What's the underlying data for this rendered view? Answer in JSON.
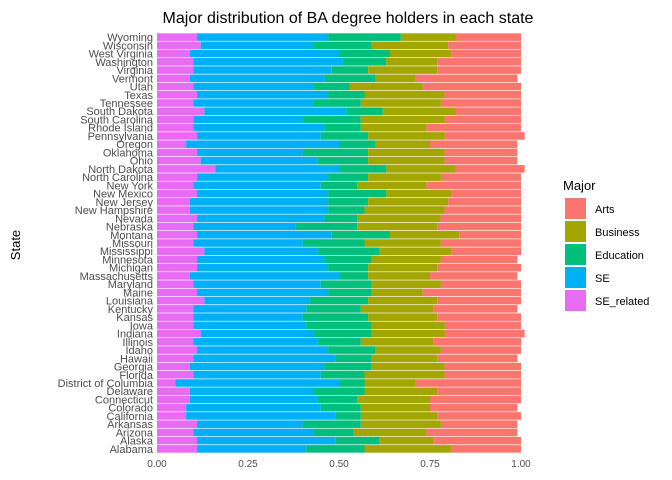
{
  "chart_data": {
    "type": "bar",
    "orientation": "horizontal",
    "stacked": true,
    "title": "Major distribution of BA degree holders in each state",
    "ylabel": "State",
    "xlabel": "",
    "xlim": [
      0,
      1
    ],
    "xticks": [
      "0.00",
      "0.25",
      "0.50",
      "0.75",
      "1.00"
    ],
    "grid": false,
    "legend": {
      "title": "Major",
      "position": "right"
    },
    "categories": [
      "Alabama",
      "Alaska",
      "Arizona",
      "Arkansas",
      "California",
      "Colorado",
      "Connecticut",
      "Delaware",
      "District of Columbia",
      "Florida",
      "Georgia",
      "Hawaii",
      "Idaho",
      "Illinois",
      "Indiana",
      "Iowa",
      "Kansas",
      "Kentucky",
      "Louisiana",
      "Maine",
      "Maryland",
      "Massachusetts",
      "Michigan",
      "Minnesota",
      "Mississippi",
      "Missouri",
      "Montana",
      "Nebraska",
      "Nevada",
      "New Hampshire",
      "New Jersey",
      "New Mexico",
      "New York",
      "North Carolina",
      "North Dakota",
      "Ohio",
      "Oklahoma",
      "Oregon",
      "Pennsylvania",
      "Rhode Island",
      "South Carolina",
      "South Dakota",
      "Tennessee",
      "Texas",
      "Utah",
      "Vermont",
      "Virginia",
      "Washington",
      "West Virginia",
      "Wisconsin",
      "Wyoming"
    ],
    "series": [
      {
        "name": "SE_related",
        "color": "#E76BF3",
        "values": [
          0.11,
          0.11,
          0.1,
          0.11,
          0.08,
          0.08,
          0.09,
          0.09,
          0.05,
          0.1,
          0.09,
          0.1,
          0.11,
          0.1,
          0.12,
          0.1,
          0.1,
          0.1,
          0.13,
          0.11,
          0.1,
          0.09,
          0.11,
          0.11,
          0.13,
          0.1,
          0.11,
          0.1,
          0.11,
          0.09,
          0.09,
          0.11,
          0.1,
          0.11,
          0.16,
          0.12,
          0.11,
          0.08,
          0.11,
          0.1,
          0.1,
          0.13,
          0.1,
          0.11,
          0.1,
          0.09,
          0.1,
          0.1,
          0.09,
          0.12,
          0.11
        ]
      },
      {
        "name": "SE",
        "color": "#00B0F6",
        "values": [
          0.3,
          0.38,
          0.33,
          0.29,
          0.41,
          0.37,
          0.35,
          0.34,
          0.45,
          0.35,
          0.37,
          0.39,
          0.36,
          0.34,
          0.31,
          0.31,
          0.3,
          0.31,
          0.29,
          0.36,
          0.35,
          0.41,
          0.36,
          0.35,
          0.31,
          0.3,
          0.37,
          0.28,
          0.35,
          0.38,
          0.38,
          0.36,
          0.35,
          0.36,
          0.34,
          0.32,
          0.29,
          0.42,
          0.34,
          0.36,
          0.3,
          0.39,
          0.33,
          0.36,
          0.33,
          0.37,
          0.38,
          0.41,
          0.41,
          0.31,
          0.36
        ]
      },
      {
        "name": "Education",
        "color": "#00BF7D",
        "values": [
          0.16,
          0.12,
          0.11,
          0.16,
          0.07,
          0.11,
          0.11,
          0.14,
          0.07,
          0.12,
          0.13,
          0.1,
          0.13,
          0.12,
          0.16,
          0.18,
          0.18,
          0.15,
          0.16,
          0.12,
          0.14,
          0.08,
          0.11,
          0.13,
          0.17,
          0.17,
          0.16,
          0.17,
          0.09,
          0.1,
          0.11,
          0.16,
          0.1,
          0.11,
          0.13,
          0.14,
          0.18,
          0.1,
          0.13,
          0.1,
          0.16,
          0.1,
          0.13,
          0.1,
          0.1,
          0.14,
          0.1,
          0.12,
          0.14,
          0.16,
          0.2
        ]
      },
      {
        "name": "Business",
        "color": "#A3A500",
        "values": [
          0.24,
          0.15,
          0.2,
          0.22,
          0.21,
          0.19,
          0.2,
          0.2,
          0.14,
          0.22,
          0.2,
          0.18,
          0.18,
          0.2,
          0.2,
          0.2,
          0.19,
          0.2,
          0.19,
          0.14,
          0.19,
          0.17,
          0.19,
          0.19,
          0.2,
          0.21,
          0.19,
          0.22,
          0.23,
          0.22,
          0.22,
          0.18,
          0.19,
          0.2,
          0.19,
          0.21,
          0.21,
          0.15,
          0.21,
          0.18,
          0.23,
          0.2,
          0.22,
          0.22,
          0.2,
          0.11,
          0.19,
          0.14,
          0.17,
          0.21,
          0.15
        ]
      },
      {
        "name": "Arts",
        "color": "#F8766D",
        "values": [
          0.19,
          0.24,
          0.25,
          0.21,
          0.23,
          0.24,
          0.25,
          0.23,
          0.29,
          0.21,
          0.21,
          0.22,
          0.22,
          0.24,
          0.22,
          0.21,
          0.23,
          0.23,
          0.23,
          0.27,
          0.22,
          0.24,
          0.23,
          0.21,
          0.19,
          0.22,
          0.17,
          0.23,
          0.22,
          0.21,
          0.2,
          0.19,
          0.26,
          0.22,
          0.19,
          0.2,
          0.2,
          0.24,
          0.22,
          0.26,
          0.21,
          0.18,
          0.22,
          0.21,
          0.27,
          0.28,
          0.23,
          0.23,
          0.19,
          0.2,
          0.18
        ]
      }
    ]
  }
}
